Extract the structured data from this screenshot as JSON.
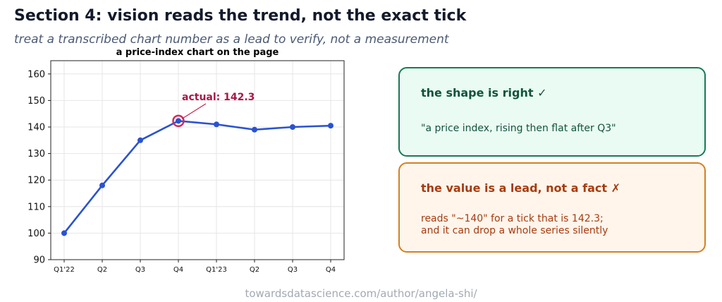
{
  "header": {
    "title": "Section 4: vision reads the trend, not the exact tick",
    "subtitle": "treat a transcribed chart number as a lead to verify, not a measurement"
  },
  "chart_data": {
    "type": "line",
    "title": "a price-index chart on the page",
    "xlabel": "",
    "ylabel": "",
    "categories": [
      "Q1'22",
      "Q2",
      "Q3",
      "Q4",
      "Q1'23",
      "Q2",
      "Q3",
      "Q4"
    ],
    "series": [
      {
        "values": [
          100,
          118,
          135,
          142.3,
          141,
          139,
          140,
          140.5
        ],
        "color": "#2a52d1"
      }
    ],
    "ylim": [
      90,
      165
    ],
    "yticks": [
      90,
      100,
      110,
      120,
      130,
      140,
      150,
      160
    ],
    "grid": true,
    "annotation": {
      "text": "actual: 142.3",
      "category_index": 3,
      "value": 142.3,
      "color": "#a8174a"
    }
  },
  "cards": {
    "shape": {
      "title": "the shape is right  ✓",
      "body": "\"a price index, rising then flat after Q3\""
    },
    "lead": {
      "title": "the value is a lead, not a fact  ✗",
      "body": "reads \"~140\" for a tick that is 142.3;\nand it can drop a whole series silently"
    }
  },
  "footer": {
    "source": "towardsdatascience.com/author/angela-shi/"
  }
}
